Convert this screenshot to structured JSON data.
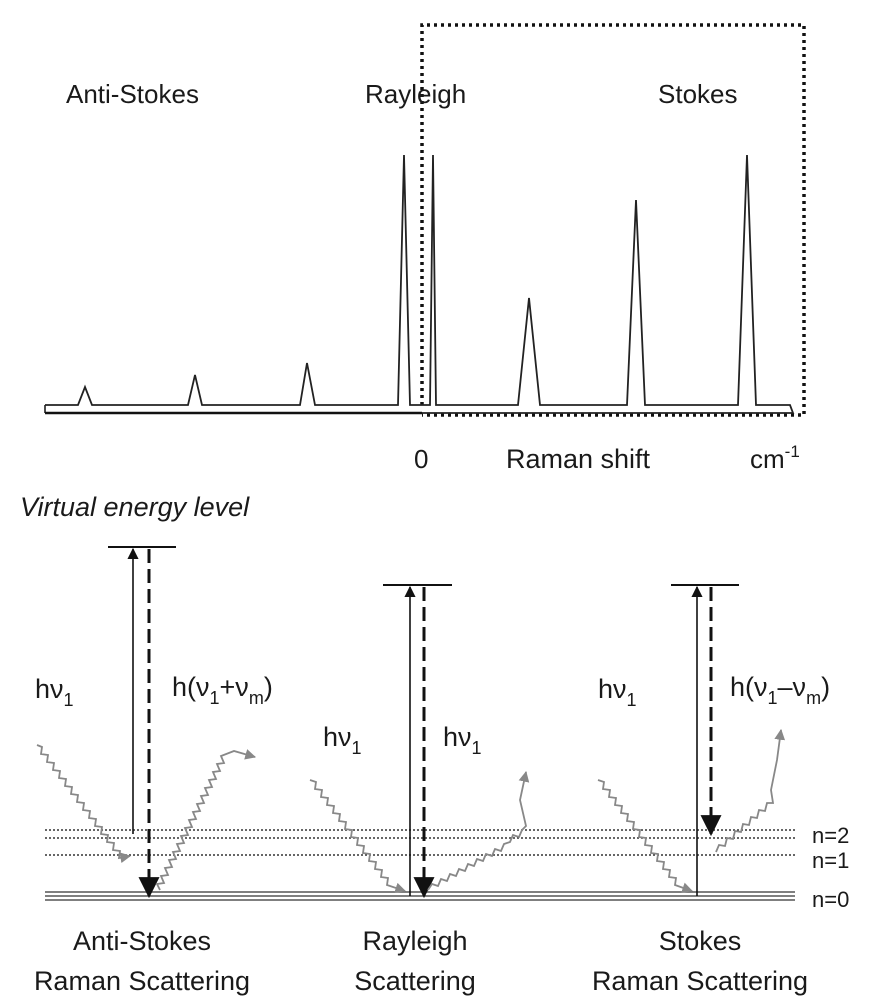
{
  "spectrum": {
    "anti_stokes_label": "Anti-Stokes",
    "rayleigh_label": "Rayleigh",
    "stokes_label": "Stokes",
    "zero_label": "0",
    "axis_label": "Raman shift",
    "unit_base": "cm",
    "unit_exp": "-1"
  },
  "energy": {
    "title": "Virtual energy level",
    "levels": [
      {
        "label": "n=2"
      },
      {
        "label": "n=1"
      },
      {
        "label": "n=0"
      }
    ],
    "anti_stokes": {
      "incident": {
        "h": "h",
        "nu": "ν",
        "sub": "1"
      },
      "scattered": {
        "pre": "h(ν",
        "sub1": "1",
        "op": "+ν",
        "sub2": "m",
        "post": ")"
      },
      "caption1": "Anti-Stokes",
      "caption2": "Raman Scattering"
    },
    "rayleigh": {
      "incident": {
        "h": "h",
        "nu": "ν",
        "sub": "1"
      },
      "scattered": {
        "h": "h",
        "nu": "ν",
        "sub": "1"
      },
      "caption1": "Rayleigh",
      "caption2": "Scattering"
    },
    "stokes": {
      "incident": {
        "h": "h",
        "nu": "ν",
        "sub": "1"
      },
      "scattered": {
        "pre": "h(ν",
        "sub1": "1",
        "op": "–ν",
        "sub2": "m",
        "post": ")"
      },
      "caption1": "Stokes",
      "caption2": "Raman Scattering"
    }
  }
}
